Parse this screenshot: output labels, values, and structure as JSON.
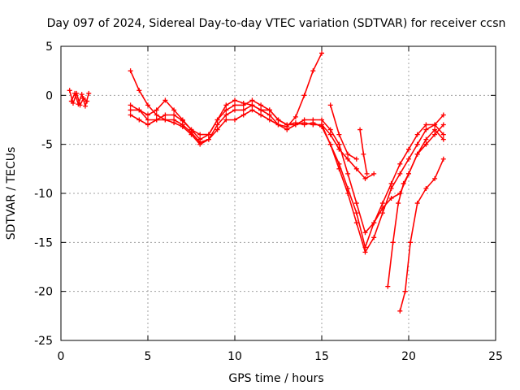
{
  "chart_data": {
    "type": "scatter",
    "title": "Day 097 of 2024, Sidereal Day-to-day VTEC variation (SDTVAR) for receiver ccsn",
    "xlabel": "GPS time / hours",
    "ylabel": "SDTVAR / TECUs",
    "xlim": [
      0,
      25
    ],
    "ylim": [
      -25,
      5
    ],
    "xticks": [
      "0",
      "5",
      "10",
      "15",
      "20",
      "25"
    ],
    "yticks": [
      "5",
      "0",
      "-5",
      "-10",
      "-15",
      "-20",
      "-25"
    ],
    "grid": true,
    "marker": "+",
    "color": "#ff0000",
    "series": [
      {
        "x": [
          0.5,
          0.7,
          0.9,
          1.1,
          1.3,
          1.5
        ],
        "y": [
          0.5,
          -0.8,
          0.2,
          -1.0,
          -0.3,
          -0.6
        ]
      },
      {
        "x": [
          0.6,
          0.8,
          1.0,
          1.2,
          1.4,
          1.6
        ],
        "y": [
          -0.6,
          0.2,
          -0.9,
          0.1,
          -1.1,
          0.2
        ]
      },
      {
        "x": [
          4.0,
          4.5,
          5.0,
          5.5,
          6.0,
          6.5,
          7.0,
          7.5,
          8.0,
          8.5,
          9.0,
          9.5,
          10.0,
          10.5,
          11.0,
          11.5,
          12.0,
          12.5,
          13.0,
          13.5,
          14.0,
          14.5,
          15.0
        ],
        "y": [
          -1.5,
          -1.5,
          -2.5,
          -2.5,
          -2.0,
          -2.0,
          -2.6,
          -3.5,
          -4.0,
          -4.0,
          -2.5,
          -1.0,
          -0.5,
          -0.8,
          -1.0,
          -1.5,
          -2.0,
          -3.0,
          -3.2,
          -2.2,
          0.0,
          2.5,
          4.3
        ]
      },
      {
        "x": [
          4.0,
          4.5,
          5.0,
          5.5,
          6.0,
          6.5,
          7.0,
          7.5,
          8.0,
          8.5,
          9.0,
          9.5,
          10.0,
          10.5,
          11.0,
          11.5,
          12.0,
          12.5,
          13.0,
          13.5,
          14.0,
          14.5,
          15.0,
          15.5,
          16.0,
          16.5,
          17.0,
          17.5,
          18.0
        ],
        "y": [
          -2.0,
          -2.5,
          -3.0,
          -2.5,
          -2.5,
          -2.5,
          -3.0,
          -3.8,
          -4.8,
          -4.5,
          -3.5,
          -2.5,
          -2.5,
          -2.0,
          -1.5,
          -2.0,
          -2.5,
          -3.0,
          -3.5,
          -3.0,
          -2.8,
          -3.0,
          -3.0,
          -4.0,
          -5.5,
          -6.5,
          -7.5,
          -8.5,
          -8.0
        ]
      },
      {
        "x": [
          4.0,
          4.5,
          5.0,
          5.5,
          6.0,
          6.5,
          7.0,
          7.5,
          8.0,
          8.5,
          9.0,
          9.5,
          10.0,
          10.5,
          11.0,
          11.5,
          12.0,
          12.5,
          13.0,
          13.5,
          14.0,
          14.5,
          15.0,
          15.5,
          16.0,
          16.5,
          17.0,
          17.5,
          18.0,
          18.5,
          19.0,
          19.5,
          20.0,
          20.5,
          21.0,
          21.5,
          22.0
        ],
        "y": [
          2.5,
          0.5,
          -1.0,
          -2.0,
          -2.5,
          -2.8,
          -3.2,
          -4.0,
          -5.0,
          -4.5,
          -3.0,
          -2.0,
          -1.5,
          -1.5,
          -1.0,
          -1.5,
          -1.5,
          -2.5,
          -3.0,
          -2.8,
          -3.0,
          -2.8,
          -3.2,
          -5.0,
          -7.5,
          -10.0,
          -13.0,
          -16.0,
          -14.5,
          -12.0,
          -9.5,
          -8.0,
          -6.5,
          -5.0,
          -3.5,
          -3.0,
          -2.0
        ]
      },
      {
        "x": [
          4.0,
          4.5,
          5.0,
          5.5,
          6.0,
          6.5,
          7.0,
          7.5,
          8.0,
          8.5,
          9.0,
          9.5,
          10.0,
          10.5,
          11.0,
          11.5,
          12.0,
          12.5,
          13.0,
          13.5,
          14.0,
          14.5,
          15.0,
          15.5,
          16.0,
          16.5,
          17.0,
          17.5,
          18.0,
          18.5,
          19.0,
          19.5,
          20.0,
          20.5,
          21.0,
          21.5,
          22.0
        ],
        "y": [
          -1.0,
          -1.5,
          -2.0,
          -1.5,
          -0.5,
          -1.5,
          -2.5,
          -3.5,
          -4.5,
          -4.0,
          -2.5,
          -1.5,
          -1.0,
          -1.0,
          -0.5,
          -1.0,
          -1.5,
          -2.5,
          -3.0,
          -3.0,
          -2.5,
          -2.5,
          -2.5,
          -3.5,
          -5.0,
          -8.0,
          -11.0,
          -14.0,
          -13.0,
          -11.0,
          -9.0,
          -7.0,
          -5.5,
          -4.0,
          -3.0,
          -3.0,
          -4.0
        ]
      },
      {
        "x": [
          15.0,
          15.5,
          16.0,
          16.5,
          17.0,
          17.5,
          18.0,
          18.5,
          19.0,
          19.5,
          20.0,
          20.5,
          21.0,
          21.5,
          22.0
        ],
        "y": [
          -3.0,
          -5.0,
          -7.0,
          -9.5,
          -12.0,
          -15.5,
          -13.0,
          -11.5,
          -10.5,
          -10.0,
          -8.0,
          -6.0,
          -4.5,
          -3.5,
          -4.5
        ]
      },
      {
        "x": [
          15.5,
          16.0,
          16.5,
          17.0
        ],
        "y": [
          -1.0,
          -4.0,
          -6.0,
          -6.5
        ]
      },
      {
        "x": [
          17.2,
          17.4,
          17.6
        ],
        "y": [
          -3.5,
          -6.0,
          -8.0
        ]
      },
      {
        "x": [
          18.8,
          19.1,
          19.4,
          19.7,
          20.0,
          20.5,
          21.0,
          21.5,
          22.0
        ],
        "y": [
          -19.5,
          -15.0,
          -11.0,
          -9.0,
          -8.0,
          -6.0,
          -5.0,
          -4.0,
          -3.0
        ]
      },
      {
        "x": [
          19.5,
          19.8,
          20.1,
          20.5,
          21.0,
          21.5,
          22.0
        ],
        "y": [
          -22.0,
          -20.0,
          -15.0,
          -11.0,
          -9.5,
          -8.5,
          -6.5
        ]
      }
    ]
  }
}
